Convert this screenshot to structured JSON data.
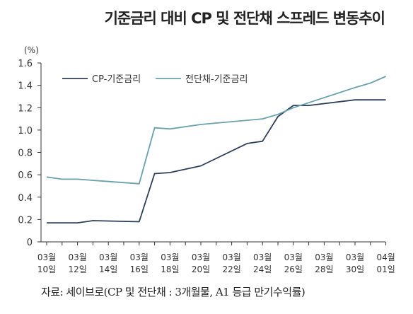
{
  "page_title": "기준금리 대비 CP 및 전단채 스프레드 변동추이",
  "unit_label": "(%)",
  "source_note": "자료: 세이브로(CP 및 전단채 : 3개월물, A1 등급 만기수익률)",
  "chart_data": {
    "type": "line",
    "title": "기준금리 대비 CP 및 전단채 스프레드 변동추이",
    "xlabel": "",
    "ylabel": "(%)",
    "ylim": [
      0,
      1.6
    ],
    "yticks": [
      "0",
      "0.2",
      "0.4",
      "0.6",
      "0.8",
      "1.0",
      "1.2",
      "1.4",
      "1.6"
    ],
    "x_tick_labels": [
      [
        "03월",
        "10일"
      ],
      [
        "03월",
        "12일"
      ],
      [
        "03월",
        "14일"
      ],
      [
        "03월",
        "16일"
      ],
      [
        "03월",
        "18일"
      ],
      [
        "03월",
        "20일"
      ],
      [
        "03월",
        "22일"
      ],
      [
        "03월",
        "24일"
      ],
      [
        "03월",
        "26일"
      ],
      [
        "03월",
        "28일"
      ],
      [
        "03월",
        "30일"
      ],
      [
        "04월",
        "01일"
      ]
    ],
    "grid": false,
    "legend_position": "top-left",
    "colors": {
      "cp": "#2f3e5a",
      "stb": "#6aa1ad",
      "axis": "#333333"
    },
    "series": [
      {
        "name": "CP-기준금리",
        "color": "#2f3e5a",
        "points": [
          [
            "03-10",
            0.17
          ],
          [
            "03-11",
            0.17
          ],
          [
            "03-12",
            0.17
          ],
          [
            "03-13",
            0.19
          ],
          [
            "03-16",
            0.18
          ],
          [
            "03-17",
            0.61
          ],
          [
            "03-18",
            0.62
          ],
          [
            "03-19",
            0.65
          ],
          [
            "03-20",
            0.68
          ],
          [
            "03-23",
            0.88
          ],
          [
            "03-24",
            0.9
          ],
          [
            "03-25",
            1.12
          ],
          [
            "03-26",
            1.22
          ],
          [
            "03-27",
            1.22
          ],
          [
            "03-30",
            1.27
          ],
          [
            "04-01",
            1.27
          ]
        ]
      },
      {
        "name": "전단채-기준금리",
        "color": "#6aa1ad",
        "points": [
          [
            "03-10",
            0.58
          ],
          [
            "03-11",
            0.56
          ],
          [
            "03-12",
            0.56
          ],
          [
            "03-16",
            0.52
          ],
          [
            "03-17",
            1.02
          ],
          [
            "03-18",
            1.01
          ],
          [
            "03-20",
            1.05
          ],
          [
            "03-24",
            1.1
          ],
          [
            "03-25",
            1.14
          ],
          [
            "03-26",
            1.2
          ],
          [
            "03-30",
            1.38
          ],
          [
            "03-31",
            1.42
          ],
          [
            "04-01",
            1.48
          ]
        ]
      }
    ]
  }
}
